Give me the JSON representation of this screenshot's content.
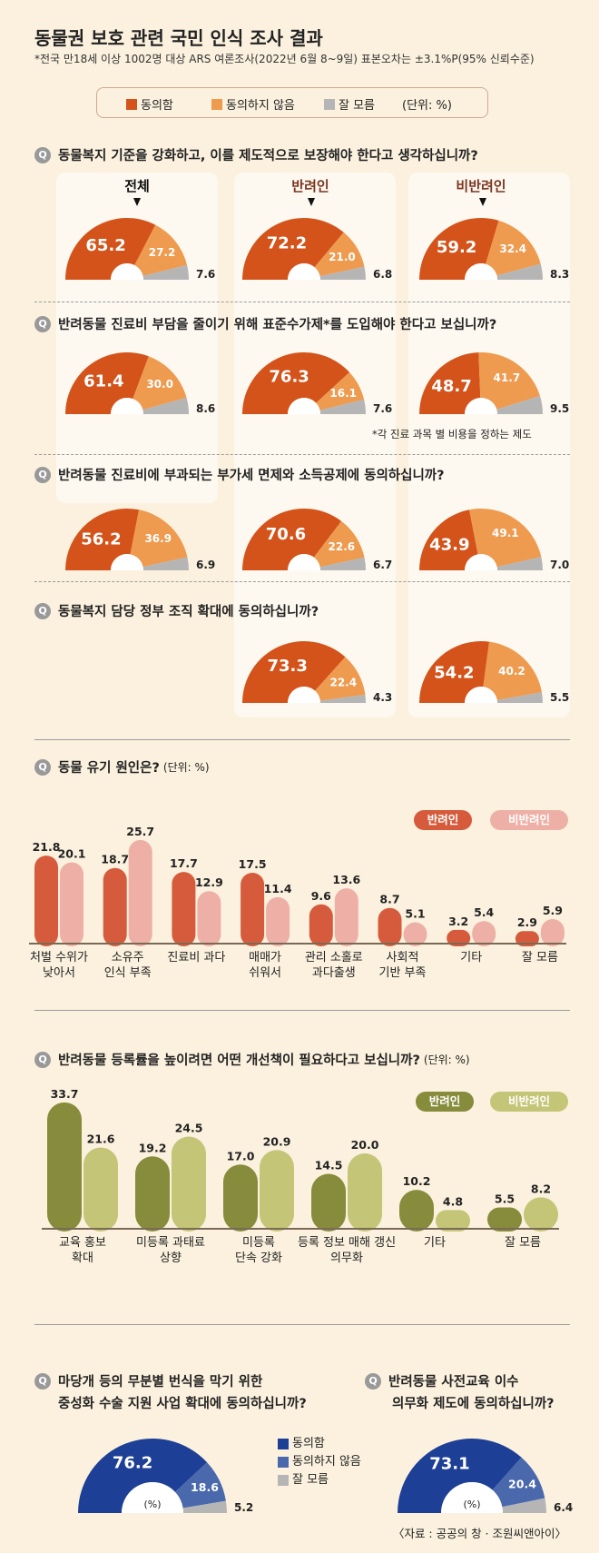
{
  "title": "동물권 보호 관련 국민 인식 조사 결과",
  "subtitle": "*전국 만18세 이상 1002명 대상 ARS 여론조사(2022년 6월 8~9일) 표본오차는 ±3.1%P(95% 신뢰수준)",
  "legend": {
    "agree": "동의함",
    "disagree": "동의하지 않음",
    "unknown": "잘 모름",
    "unit": "(단위: %)"
  },
  "colors": {
    "agree": "#d4531a",
    "disagree": "#ee9a4f",
    "unknown": "#b5b5b5",
    "pet_red": "#d65b3c",
    "nonpet_pink": "#eeb0a6",
    "pet_olive": "#878c3c",
    "nonpet_olive": "#c4c577",
    "blue": "#1e3f96",
    "blue_mid": "#4a69ad"
  },
  "columns": {
    "all": "전체",
    "pet": "반려인",
    "nonpet": "비반려인"
  },
  "q_icon": "Q",
  "questions": [
    {
      "text": "동물복지 기준을 강화하고, 이를 제도적으로 보장해야 한다고 생각하십니까?"
    },
    {
      "text": "반려동물 진료비 부담을 줄이기 위해 표준수가제*를 도입해야 한다고 보십니까?",
      "footnote": "*각 진료 과목 별 비용을 정하는 제도"
    },
    {
      "text": "반려동물 진료비에 부과되는 부가세 면제와 소득공제에 동의하십니까?"
    },
    {
      "text": "동물복지 담당 정부 조직 확대에 동의하십니까?"
    }
  ],
  "bar1": {
    "question": "동물 유기 원인은?",
    "unit": "(단위: %)",
    "legend_pet": "반려인",
    "legend_nonpet": "비반려인"
  },
  "bar2": {
    "question": "반려동물 등록률을 높이려면 어떤 개선책이 필요하다고 보십니까?",
    "unit": "(단위: %)",
    "legend_pet": "반려인",
    "legend_nonpet": "비반려인"
  },
  "blue": {
    "q1_line1": "마당개 등의 무분별 번식을 막기 위한",
    "q1_line2": "중성화 수술 지원 사업 확대에 동의하십니까?",
    "q2_line1": "반려동물 사전교육 이수",
    "q2_line2": "의무화 제도에 동의하십니까?",
    "legend_agree": "동의함",
    "legend_disagree": "동의하지 않음",
    "legend_unknown": "잘 모름",
    "center_unit": "(%)"
  },
  "source": "〈자료 : 공공의 창 · 조원씨앤아이〉",
  "chart_data": [
    {
      "type": "pie",
      "title": "동물복지 기준을 강화하고, 이를 제도적으로 보장해야 한다고 생각하십니까?",
      "categories": [
        "동의함",
        "동의하지 않음",
        "잘 모름"
      ],
      "series": [
        {
          "name": "전체",
          "values": [
            65.2,
            27.2,
            7.6
          ]
        },
        {
          "name": "반려인",
          "values": [
            72.2,
            21.0,
            6.8
          ]
        },
        {
          "name": "비반려인",
          "values": [
            59.2,
            32.4,
            8.3
          ]
        }
      ]
    },
    {
      "type": "pie",
      "title": "반려동물 진료비 부담을 줄이기 위해 표준수가제*를 도입해야 한다고 보십니까?",
      "categories": [
        "동의함",
        "동의하지 않음",
        "잘 모름"
      ],
      "series": [
        {
          "name": "전체",
          "values": [
            61.4,
            30.0,
            8.6
          ]
        },
        {
          "name": "반려인",
          "values": [
            76.3,
            16.1,
            7.6
          ]
        },
        {
          "name": "비반려인",
          "values": [
            48.7,
            41.7,
            9.5
          ]
        }
      ]
    },
    {
      "type": "pie",
      "title": "반려동물 진료비에 부과되는 부가세 면제와 소득공제에 동의하십니까?",
      "categories": [
        "동의함",
        "동의하지 않음",
        "잘 모름"
      ],
      "series": [
        {
          "name": "전체",
          "values": [
            56.2,
            36.9,
            6.9
          ]
        },
        {
          "name": "반려인",
          "values": [
            70.6,
            22.6,
            6.7
          ]
        },
        {
          "name": "비반려인",
          "values": [
            43.9,
            49.1,
            7.0
          ]
        }
      ]
    },
    {
      "type": "pie",
      "title": "동물복지 담당 정부 조직 확대에 동의하십니까?",
      "categories": [
        "동의함",
        "동의하지 않음",
        "잘 모름"
      ],
      "series": [
        {
          "name": "반려인",
          "values": [
            73.3,
            22.4,
            4.3
          ]
        },
        {
          "name": "비반려인",
          "values": [
            54.2,
            40.2,
            5.5
          ]
        }
      ]
    },
    {
      "type": "bar",
      "title": "동물 유기 원인은?",
      "categories": [
        "처벌 수위가|낮아서",
        "소유주|인식 부족",
        "진료비 과다",
        "매매가|쉬워서",
        "관리 소홀로|과다출생",
        "사회적|기반 부족",
        "기타",
        "잘 모름"
      ],
      "series": [
        {
          "name": "반려인",
          "values": [
            21.8,
            18.7,
            17.7,
            17.5,
            9.6,
            8.7,
            3.2,
            2.9
          ]
        },
        {
          "name": "비반려인",
          "values": [
            20.1,
            25.7,
            12.9,
            11.4,
            13.6,
            5.1,
            5.4,
            5.9
          ]
        }
      ]
    },
    {
      "type": "bar",
      "title": "반려동물 등록률을 높이려면 어떤 개선책이 필요하다고 보십니까?",
      "categories": [
        "교육 홍보|확대",
        "미등록 과태료|상향",
        "미등록|단속 강화",
        "등록 정보 매해 갱신|의무화",
        "기타",
        "잘 모름"
      ],
      "series": [
        {
          "name": "반려인",
          "values": [
            33.7,
            19.2,
            17.0,
            14.5,
            10.2,
            5.5
          ]
        },
        {
          "name": "비반려인",
          "values": [
            21.6,
            24.5,
            20.9,
            20.0,
            4.8,
            8.2
          ]
        }
      ]
    },
    {
      "type": "pie",
      "title": "마당개 등의 무분별 번식을 막기 위한 중성화 수술 지원 사업 확대에 동의하십니까?",
      "categories": [
        "동의함",
        "동의하지 않음",
        "잘 모름"
      ],
      "values": [
        76.2,
        18.6,
        5.2
      ]
    },
    {
      "type": "pie",
      "title": "반려동물 사전교육 이수 의무화 제도에 동의하십니까?",
      "categories": [
        "동의함",
        "동의하지 않음",
        "잘 모름"
      ],
      "values": [
        73.1,
        20.4,
        6.4
      ]
    }
  ]
}
